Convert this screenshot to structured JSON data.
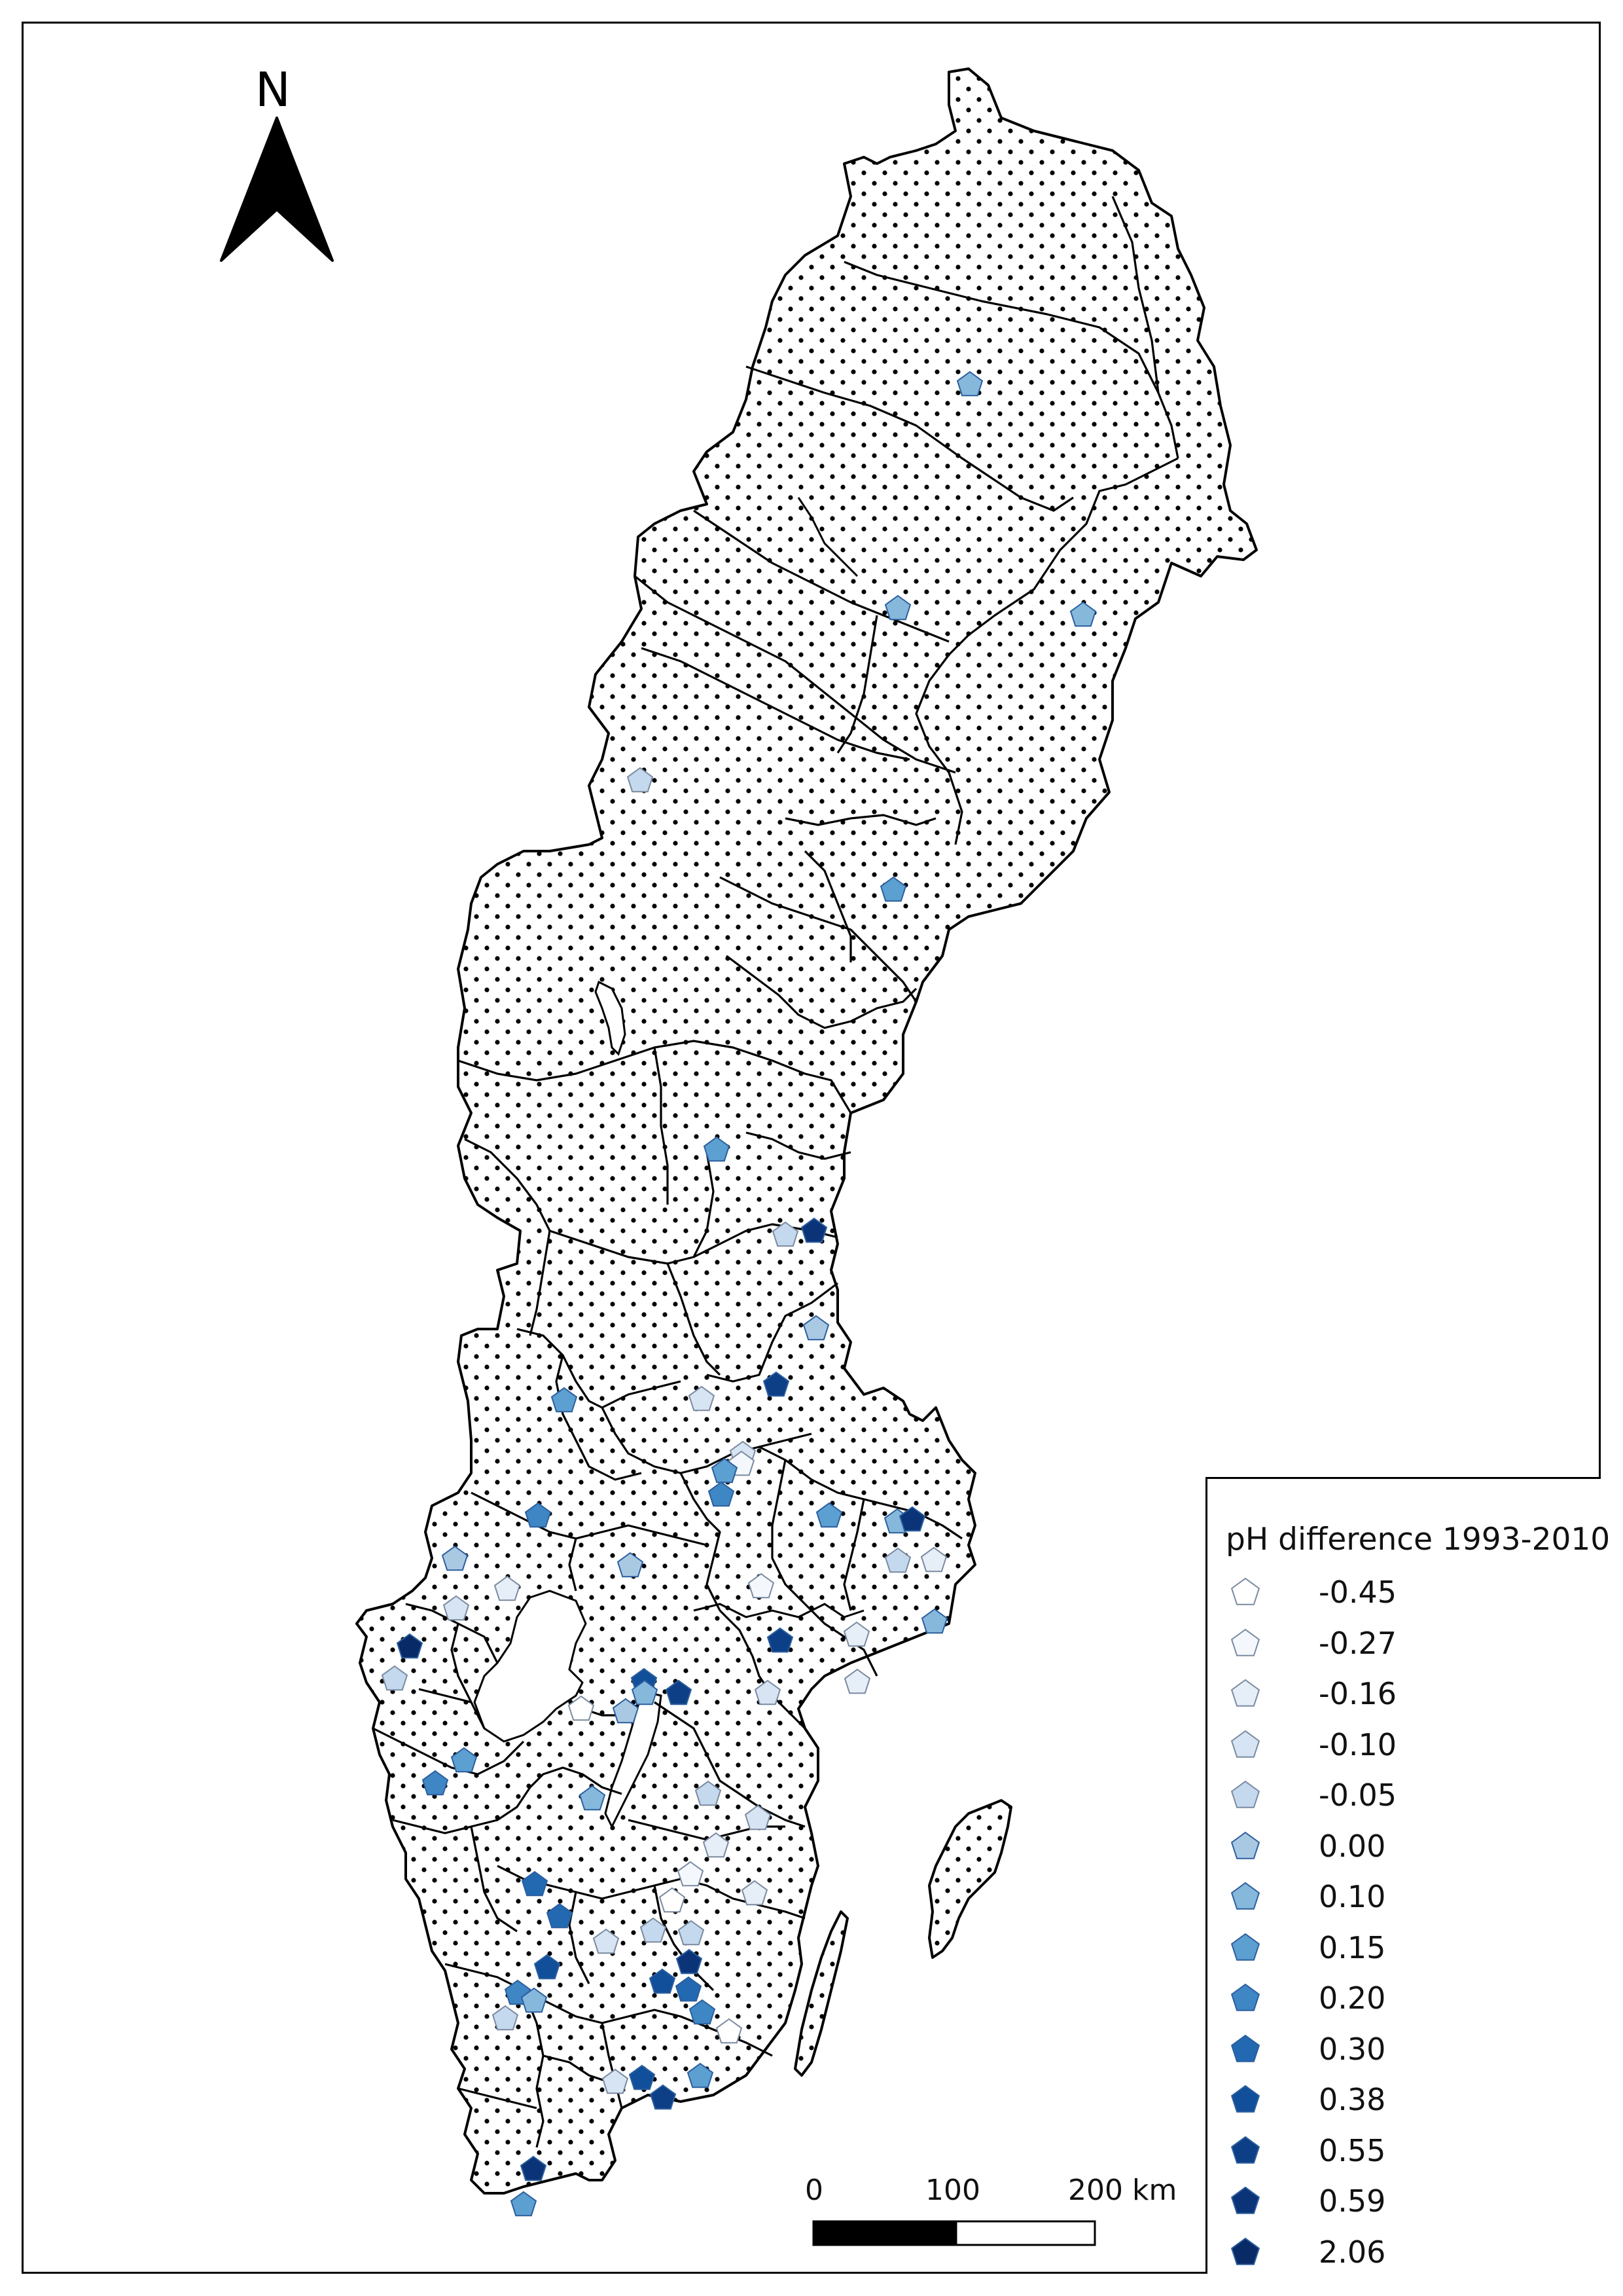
{
  "north_arrow": {
    "label": "N",
    "icon": "north-arrow-icon"
  },
  "legend": {
    "title": "pH difference 1993-2010",
    "classes": [
      {
        "label": "-0.45",
        "color": "#ffffff"
      },
      {
        "label": "-0.27",
        "color": "#f4f8fd"
      },
      {
        "label": "-0.16",
        "color": "#e6eef8"
      },
      {
        "label": "-0.10",
        "color": "#d6e4f3"
      },
      {
        "label": "-0.05",
        "color": "#c4d9ee"
      },
      {
        "label": "0.00",
        "color": "#a9c9e3"
      },
      {
        "label": "0.10",
        "color": "#86b8dc"
      },
      {
        "label": "0.15",
        "color": "#5c9fd1"
      },
      {
        "label": "0.20",
        "color": "#3f86c4"
      },
      {
        "label": "0.30",
        "color": "#2269b2"
      },
      {
        "label": "0.38",
        "color": "#114f9a"
      },
      {
        "label": "0.55",
        "color": "#0d3f87"
      },
      {
        "label": "0.59",
        "color": "#0a3477"
      },
      {
        "label": "2.06",
        "color": "#082a66"
      }
    ]
  },
  "scale_bar": {
    "labels": [
      "0",
      "100",
      "200 km"
    ]
  },
  "fill_pattern": "dots"
}
